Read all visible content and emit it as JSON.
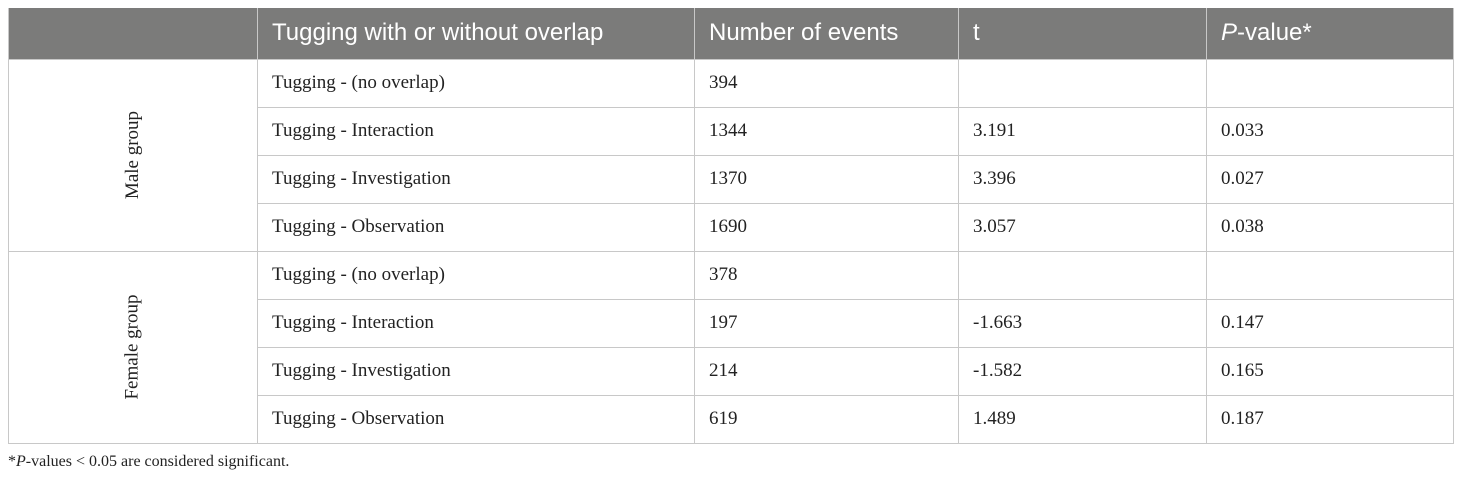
{
  "table": {
    "headers": {
      "col_group": "",
      "col_tugging": "Tugging with or without overlap",
      "col_events": "Number of events",
      "col_t": "t",
      "col_p_italic": "P",
      "col_p_rest": "-value*"
    },
    "groups": [
      {
        "label": "Male group",
        "rows": [
          {
            "tugging": "Tugging - (no overlap)",
            "events": "394",
            "t": "",
            "p": ""
          },
          {
            "tugging": "Tugging - Interaction",
            "events": "1344",
            "t": "3.191",
            "p": "0.033"
          },
          {
            "tugging": "Tugging - Investigation",
            "events": "1370",
            "t": "3.396",
            "p": "0.027"
          },
          {
            "tugging": "Tugging - Observation",
            "events": "1690",
            "t": "3.057",
            "p": "0.038"
          }
        ]
      },
      {
        "label": "Female group",
        "rows": [
          {
            "tugging": "Tugging - (no overlap)",
            "events": "378",
            "t": "",
            "p": ""
          },
          {
            "tugging": "Tugging - Interaction",
            "events": "197",
            "t": "-1.663",
            "p": "0.147"
          },
          {
            "tugging": "Tugging - Investigation",
            "events": "214",
            "t": "-1.582",
            "p": "0.165"
          },
          {
            "tugging": "Tugging - Observation",
            "events": "619",
            "t": "1.489",
            "p": "0.187"
          }
        ]
      }
    ]
  },
  "footnote": {
    "mark": "*",
    "italic": "P",
    "rest": "-values < 0.05 are considered significant."
  },
  "colors": {
    "header_bg": "#7b7b7a",
    "header_text": "#ffffff",
    "border": "#c8c8c8"
  }
}
